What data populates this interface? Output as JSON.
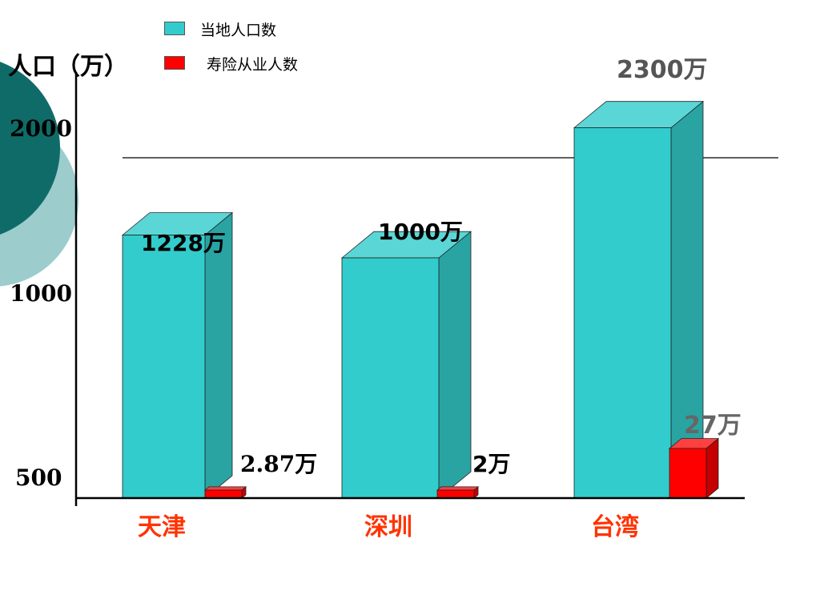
{
  "chart_data": {
    "type": "bar",
    "y_axis_label": "人口（万）",
    "y_ticks": [
      "500",
      "1000",
      "2000"
    ],
    "categories": [
      "天津",
      "深圳",
      "台湾"
    ],
    "series": [
      {
        "name": "当地人口数",
        "values": [
          1228,
          1000,
          2300
        ],
        "labels": [
          "1228万",
          "1000万",
          "2300万"
        ],
        "color": "#33cccc"
      },
      {
        "name": "寿险从业人数",
        "values": [
          2.87,
          2,
          27
        ],
        "labels": [
          "2.87万",
          "2万",
          "27万"
        ],
        "color": "#ff0000"
      }
    ],
    "reference_line": 2000,
    "colors": {
      "category_label": "#ff3300",
      "deco_dark": "#0f6b68",
      "deco_light": "#9ccccc"
    }
  }
}
